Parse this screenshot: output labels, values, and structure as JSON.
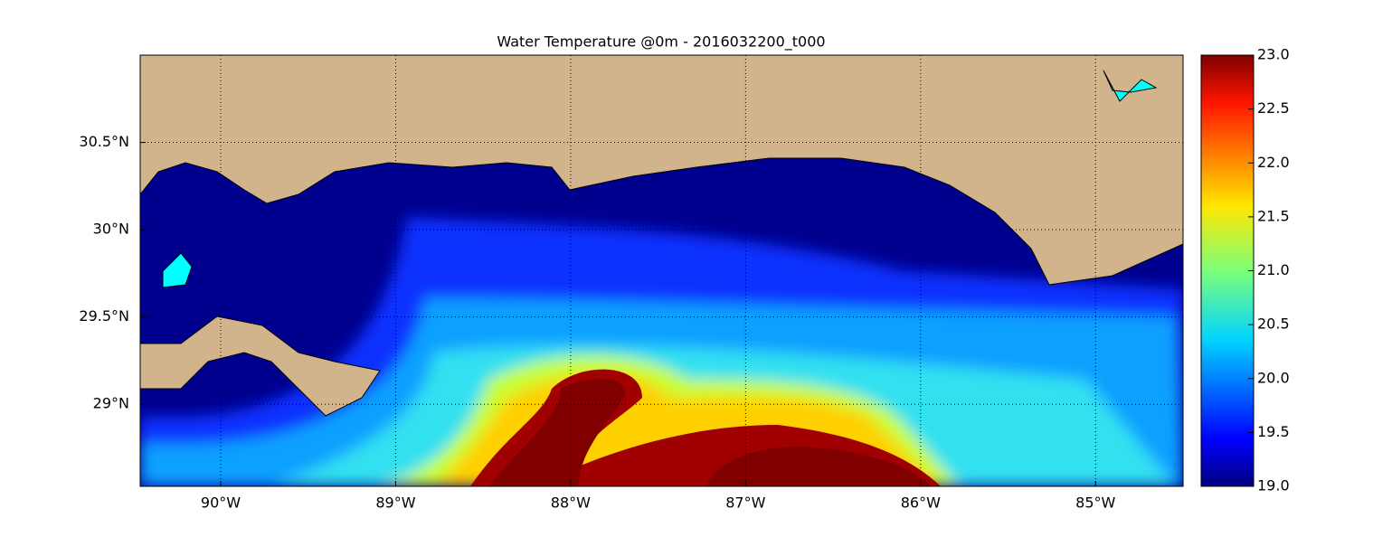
{
  "map": {
    "title": "Water Temperature @0m - 2016032200_t000",
    "xlim": [
      -90.46,
      -84.5
    ],
    "ylim": [
      28.53,
      31.0
    ],
    "xticks": [
      {
        "value": -90,
        "label": "90°W"
      },
      {
        "value": -89,
        "label": "89°W"
      },
      {
        "value": -88,
        "label": "88°W"
      },
      {
        "value": -87,
        "label": "87°W"
      },
      {
        "value": -86,
        "label": "86°W"
      },
      {
        "value": -85,
        "label": "85°W"
      }
    ],
    "yticks": [
      {
        "value": 29,
        "label": "29°N"
      },
      {
        "value": 29.5,
        "label": "29.5°N"
      },
      {
        "value": 30,
        "label": "30°N"
      },
      {
        "value": 30.5,
        "label": "30.5°N"
      }
    ],
    "grid": true,
    "colorbar": {
      "lim": [
        19.0,
        23.0
      ],
      "ticks": [
        {
          "value": 19,
          "label": "19.0"
        },
        {
          "value": 19.5,
          "label": "19.5"
        },
        {
          "value": 20,
          "label": "20.0"
        },
        {
          "value": 20.5,
          "label": "20.5"
        },
        {
          "value": 21,
          "label": "21.0"
        },
        {
          "value": 21.5,
          "label": "21.5"
        },
        {
          "value": 22,
          "label": "22.0"
        },
        {
          "value": 22.5,
          "label": "22.5"
        },
        {
          "value": 23,
          "label": "23.0"
        }
      ]
    }
  }
}
